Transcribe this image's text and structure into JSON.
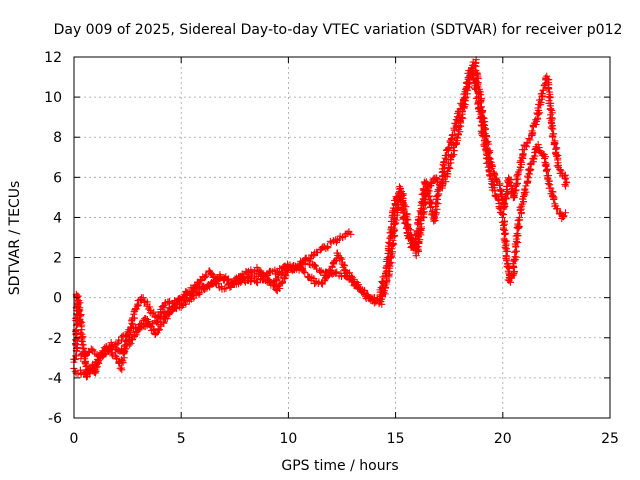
{
  "chart_data": {
    "type": "scatter",
    "title": "Day 009 of 2025, Sidereal Day-to-day VTEC variation (SDTVAR) for receiver p012",
    "xlabel": "GPS time / hours",
    "ylabel": "SDTVAR / TECUs",
    "xlim": [
      0,
      25
    ],
    "ylim": [
      -6,
      12
    ],
    "x_ticks": [
      0,
      5,
      10,
      15,
      20,
      25
    ],
    "y_ticks": [
      -6,
      -4,
      -2,
      0,
      2,
      4,
      6,
      8,
      10,
      12
    ],
    "grid": true,
    "marker": "+",
    "series_color": "#ff0000",
    "series": [
      {
        "name": "SDTVAR",
        "trace_a": [
          [
            0.0,
            -3.2
          ],
          [
            0.1,
            -3.0
          ],
          [
            0.15,
            0.2
          ],
          [
            0.2,
            0.0
          ],
          [
            0.3,
            -1.0
          ],
          [
            0.4,
            -2.0
          ],
          [
            0.5,
            -3.0
          ],
          [
            0.6,
            -4.0
          ],
          [
            0.8,
            -3.5
          ],
          [
            1.0,
            -3.8
          ],
          [
            1.2,
            -3.0
          ],
          [
            1.5,
            -2.5
          ],
          [
            1.8,
            -2.8
          ],
          [
            2.0,
            -3.0
          ],
          [
            2.2,
            -3.5
          ],
          [
            2.5,
            -2.0
          ],
          [
            2.8,
            -1.0
          ],
          [
            3.0,
            -0.2
          ],
          [
            3.2,
            0.0
          ],
          [
            3.5,
            -0.5
          ],
          [
            3.8,
            -1.0
          ],
          [
            4.0,
            -0.8
          ],
          [
            4.3,
            -0.2
          ],
          [
            4.6,
            -0.4
          ],
          [
            5.0,
            0.0
          ],
          [
            5.3,
            0.3
          ],
          [
            5.6,
            0.5
          ],
          [
            6.0,
            1.0
          ],
          [
            6.3,
            1.3
          ],
          [
            6.6,
            0.9
          ],
          [
            7.0,
            1.0
          ],
          [
            7.5,
            0.7
          ],
          [
            8.0,
            0.9
          ],
          [
            8.5,
            1.1
          ],
          [
            9.0,
            1.2
          ],
          [
            9.5,
            1.3
          ],
          [
            10.0,
            1.6
          ],
          [
            10.5,
            1.7
          ],
          [
            11.0,
            2.0
          ],
          [
            11.5,
            2.4
          ],
          [
            12.0,
            2.7
          ],
          [
            12.5,
            3.0
          ],
          [
            13.0,
            3.3
          ]
        ],
        "trace_b": [
          [
            0.0,
            -3.6
          ],
          [
            0.5,
            -3.8
          ],
          [
            1.0,
            -3.3
          ],
          [
            1.5,
            -2.5
          ],
          [
            2.0,
            -2.2
          ],
          [
            2.5,
            -1.8
          ],
          [
            3.0,
            -1.5
          ],
          [
            3.5,
            -1.3
          ],
          [
            4.0,
            -1.1
          ],
          [
            4.5,
            -0.6
          ],
          [
            5.0,
            -0.4
          ],
          [
            5.5,
            0.0
          ],
          [
            6.0,
            0.4
          ],
          [
            6.5,
            0.7
          ],
          [
            7.0,
            0.5
          ],
          [
            7.5,
            0.8
          ],
          [
            8.0,
            1.2
          ],
          [
            8.5,
            1.4
          ],
          [
            9.0,
            1.0
          ],
          [
            9.5,
            0.4
          ],
          [
            10.0,
            1.3
          ],
          [
            10.5,
            1.5
          ],
          [
            11.0,
            1.0
          ],
          [
            11.5,
            0.6
          ],
          [
            12.0,
            1.3
          ],
          [
            12.5,
            1.1
          ],
          [
            13.0,
            0.8
          ],
          [
            13.5,
            0.2
          ],
          [
            14.0,
            -0.2
          ],
          [
            14.3,
            -0.3
          ],
          [
            14.6,
            0.8
          ],
          [
            14.8,
            2.0
          ],
          [
            15.0,
            4.0
          ],
          [
            15.2,
            5.5
          ],
          [
            15.4,
            4.0
          ],
          [
            15.6,
            3.0
          ],
          [
            15.8,
            2.4
          ],
          [
            16.0,
            3.2
          ],
          [
            16.2,
            4.5
          ],
          [
            16.4,
            5.8
          ],
          [
            16.6,
            4.8
          ],
          [
            16.8,
            3.8
          ],
          [
            17.0,
            5.2
          ],
          [
            17.3,
            6.8
          ],
          [
            17.6,
            7.8
          ],
          [
            17.9,
            9.0
          ],
          [
            18.2,
            10.0
          ],
          [
            18.5,
            11.5
          ],
          [
            18.8,
            10.2
          ],
          [
            19.1,
            8.0
          ],
          [
            19.4,
            6.2
          ],
          [
            19.7,
            5.0
          ],
          [
            20.0,
            4.2
          ],
          [
            20.2,
            2.0
          ],
          [
            20.3,
            0.8
          ],
          [
            20.5,
            1.2
          ],
          [
            20.7,
            3.5
          ],
          [
            21.0,
            5.2
          ],
          [
            21.3,
            6.5
          ],
          [
            21.6,
            7.6
          ],
          [
            21.9,
            7.2
          ],
          [
            22.2,
            5.5
          ],
          [
            22.5,
            4.5
          ],
          [
            22.8,
            4.0
          ],
          [
            23.0,
            4.2
          ]
        ],
        "trace_c": [
          [
            0.3,
            -3.0
          ],
          [
            0.8,
            -2.6
          ],
          [
            1.3,
            -2.9
          ],
          [
            1.8,
            -2.4
          ],
          [
            2.3,
            -2.7
          ],
          [
            2.8,
            -2.0
          ],
          [
            3.3,
            -1.0
          ],
          [
            3.8,
            -1.8
          ],
          [
            4.3,
            -1.0
          ],
          [
            4.8,
            -0.3
          ],
          [
            5.3,
            0.2
          ],
          [
            5.8,
            0.6
          ],
          [
            6.3,
            0.5
          ],
          [
            6.8,
            1.1
          ],
          [
            7.3,
            0.6
          ],
          [
            7.8,
            1.0
          ],
          [
            8.3,
            0.8
          ],
          [
            8.8,
            0.9
          ],
          [
            9.3,
            0.6
          ],
          [
            9.8,
            1.5
          ],
          [
            10.3,
            1.4
          ],
          [
            10.8,
            1.8
          ],
          [
            11.3,
            1.5
          ],
          [
            11.8,
            1.1
          ],
          [
            12.3,
            2.2
          ],
          [
            12.8,
            1.2
          ],
          [
            13.3,
            0.5
          ],
          [
            13.8,
            0.0
          ],
          [
            14.2,
            -0.1
          ],
          [
            14.6,
            1.5
          ],
          [
            15.0,
            5.0
          ],
          [
            15.3,
            5.2
          ],
          [
            15.6,
            3.5
          ],
          [
            16.0,
            2.2
          ],
          [
            16.4,
            5.0
          ],
          [
            16.8,
            6.0
          ],
          [
            17.2,
            5.5
          ],
          [
            17.6,
            7.0
          ],
          [
            18.0,
            8.5
          ],
          [
            18.4,
            10.8
          ],
          [
            18.7,
            11.8
          ],
          [
            19.0,
            9.5
          ],
          [
            19.3,
            7.5
          ],
          [
            19.6,
            6.0
          ],
          [
            19.9,
            5.5
          ],
          [
            20.1,
            4.5
          ],
          [
            20.3,
            6.0
          ],
          [
            20.5,
            5.0
          ],
          [
            20.8,
            6.5
          ],
          [
            21.0,
            7.5
          ],
          [
            21.3,
            8.0
          ],
          [
            21.6,
            9.0
          ],
          [
            21.9,
            10.5
          ],
          [
            22.1,
            11.0
          ],
          [
            22.3,
            8.5
          ],
          [
            22.6,
            6.5
          ],
          [
            22.9,
            6.0
          ],
          [
            23.0,
            5.5
          ]
        ]
      }
    ]
  }
}
